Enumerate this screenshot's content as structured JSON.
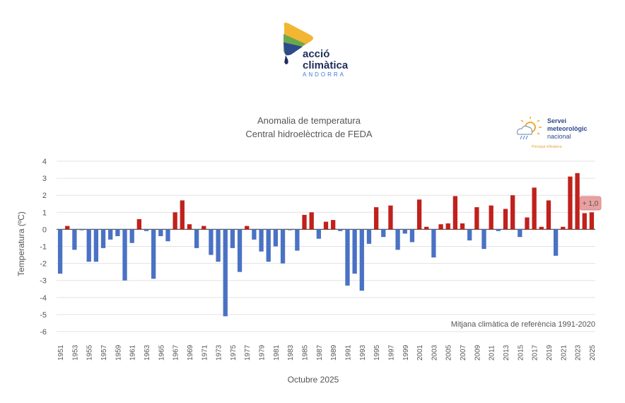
{
  "logo": {
    "line1": "acció",
    "line2": "climàtica",
    "line3": "ANDORRA"
  },
  "partner_logo": {
    "line1": "Servei",
    "line2": "meteorològic",
    "line3": "nacional",
    "line4": "Principat d'Andorra"
  },
  "chart_data": {
    "type": "bar",
    "title": "Anomalia de temperatura",
    "subtitle": "Central hidroelèctrica de FEDA",
    "ylabel": "Temperatura (ºC)",
    "xlabel": "Octubre 2025",
    "ylim": [
      -6,
      4
    ],
    "yticks": [
      4,
      3,
      2,
      1,
      0,
      -1,
      -2,
      -3,
      -4,
      -5,
      -6
    ],
    "grid": true,
    "annotation": "+ 1,0",
    "note": "Mitjana climàtica de referència 1991-2020",
    "colors": {
      "positive": "#c0211c",
      "negative": "#4a72c4"
    },
    "categories": [
      1951,
      1952,
      1953,
      1954,
      1955,
      1956,
      1957,
      1958,
      1959,
      1960,
      1961,
      1962,
      1963,
      1964,
      1965,
      1966,
      1967,
      1968,
      1969,
      1970,
      1971,
      1972,
      1973,
      1974,
      1975,
      1976,
      1977,
      1978,
      1979,
      1980,
      1981,
      1982,
      1983,
      1984,
      1985,
      1986,
      1987,
      1988,
      1989,
      1990,
      1991,
      1992,
      1993,
      1994,
      1995,
      1996,
      1997,
      1998,
      1999,
      2000,
      2001,
      2002,
      2003,
      2004,
      2005,
      2006,
      2007,
      2008,
      2009,
      2010,
      2011,
      2012,
      2013,
      2014,
      2015,
      2016,
      2017,
      2018,
      2019,
      2020,
      2021,
      2022,
      2023,
      2024,
      2025
    ],
    "values": [
      -2.6,
      0.2,
      -1.2,
      -0.05,
      -1.9,
      -1.9,
      -1.1,
      -0.6,
      -0.4,
      -3.0,
      -0.8,
      0.6,
      -0.1,
      -2.9,
      -0.4,
      -0.7,
      1.0,
      1.7,
      0.3,
      -1.1,
      0.2,
      -1.5,
      -1.9,
      -5.1,
      -1.1,
      -2.5,
      0.2,
      -0.6,
      -1.3,
      -1.9,
      -1.0,
      -2.0,
      -0.05,
      -1.25,
      0.85,
      1.0,
      -0.55,
      0.45,
      0.55,
      -0.1,
      -3.3,
      -2.6,
      -3.6,
      -0.85,
      1.3,
      -0.45,
      1.4,
      -1.2,
      -0.25,
      -0.75,
      1.75,
      0.15,
      -1.65,
      0.3,
      0.35,
      1.95,
      0.35,
      -0.65,
      1.3,
      -1.15,
      1.4,
      -0.1,
      1.2,
      2.0,
      -0.45,
      0.7,
      2.45,
      0.15,
      1.7,
      -1.55,
      0.15,
      3.1,
      3.3,
      0.95,
      1.0
    ]
  }
}
